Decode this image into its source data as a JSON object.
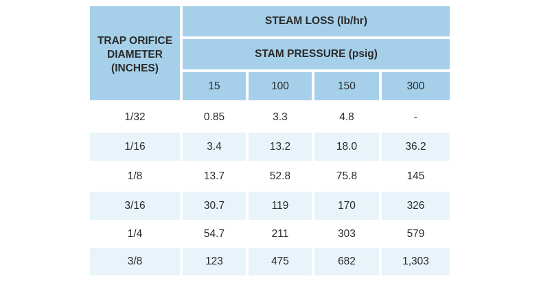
{
  "table": {
    "row_header_label": "TRAP ORIFICE DIAMETER (INCHES)",
    "row_header_lines": [
      "TRAP ORIFICE",
      "DIAMETER",
      "(INCHES)"
    ],
    "group_header": "STEAM LOSS (lb/hr)",
    "sub_header": "STAM PRESSURE (psig)",
    "pressures": [
      "15",
      "100",
      "150",
      "300"
    ],
    "rows": [
      {
        "diameter": "1/32",
        "values": [
          "0.85",
          "3.3",
          "4.8",
          "-"
        ]
      },
      {
        "diameter": "1/16",
        "values": [
          "3.4",
          "13.2",
          "18.0",
          "36.2"
        ]
      },
      {
        "diameter": "1/8",
        "values": [
          "13.7",
          "52.8",
          "75.8",
          "145"
        ]
      },
      {
        "diameter": "3/16",
        "values": [
          "30.7",
          "119",
          "170",
          "326"
        ]
      },
      {
        "diameter": "1/4",
        "values": [
          "54.7",
          "211",
          "303",
          "579"
        ]
      },
      {
        "diameter": "3/8",
        "values": [
          "123",
          "475",
          "682",
          "1,303"
        ]
      }
    ]
  },
  "colors": {
    "header_bg": "#a6d0ea",
    "alt_row_bg": "#e8f3fa",
    "text": "#2a2a2a"
  }
}
